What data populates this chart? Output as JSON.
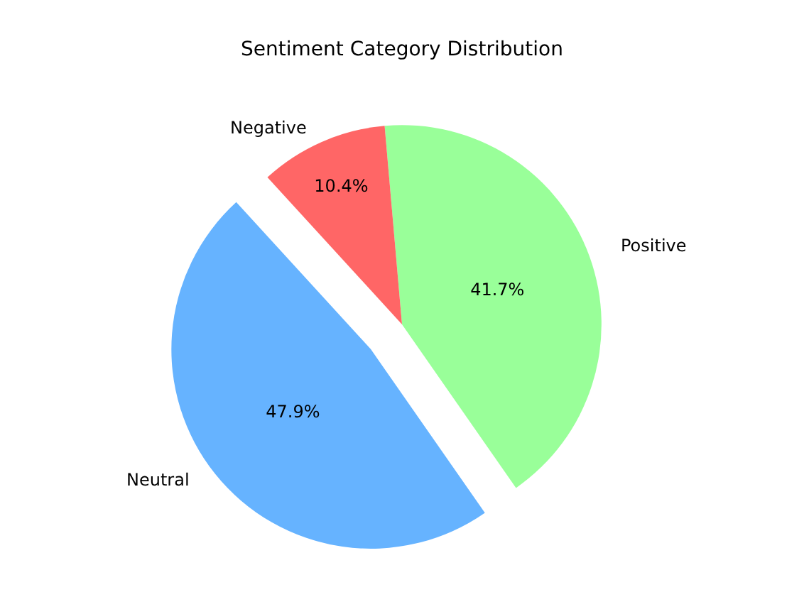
{
  "chart_data": {
    "type": "pie",
    "title": "Sentiment Category Distribution",
    "categories": [
      "Positive",
      "Neutral",
      "Negative"
    ],
    "values": [
      41.7,
      47.9,
      10.4
    ],
    "colors": [
      "#99ff99",
      "#66b3ff",
      "#ff6666"
    ],
    "value_labels": [
      "41.7%",
      "47.9%",
      "10.4%"
    ],
    "legend": false
  }
}
